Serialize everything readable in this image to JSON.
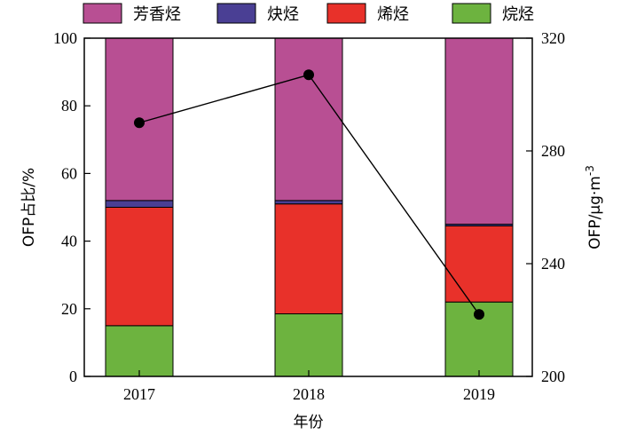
{
  "chart_data": {
    "type": "bar",
    "stacked": true,
    "categories": [
      "2017",
      "2018",
      "2019"
    ],
    "series": [
      {
        "name": "烷烃",
        "color": "#6db33f",
        "values": [
          15,
          18.5,
          22
        ]
      },
      {
        "name": "烯烃",
        "color": "#e8312a",
        "values": [
          35,
          32.5,
          22.5
        ]
      },
      {
        "name": "炔烃",
        "color": "#4a3f94",
        "values": [
          2,
          1,
          0.5
        ]
      },
      {
        "name": "芳香烃",
        "color": "#b84f93",
        "values": [
          48,
          48,
          55
        ]
      }
    ],
    "legend_order": [
      "芳香烃",
      "炔烃",
      "烯烃",
      "烷烃"
    ],
    "line_series": {
      "name": "",
      "axis": "right",
      "values": [
        290,
        307,
        222
      ]
    },
    "xlabel": "年份",
    "ylabel": "OFP占比/%",
    "ylabel_right": "OFP/μg·m",
    "ylabel_right_sup": "-3",
    "ylim": [
      0,
      100
    ],
    "y_ticks": [
      0,
      20,
      40,
      60,
      80,
      100
    ],
    "ylim_right": [
      200,
      320
    ],
    "y_right_ticks": [
      200,
      240,
      280,
      320
    ],
    "legend_position": "top",
    "grid": false
  }
}
